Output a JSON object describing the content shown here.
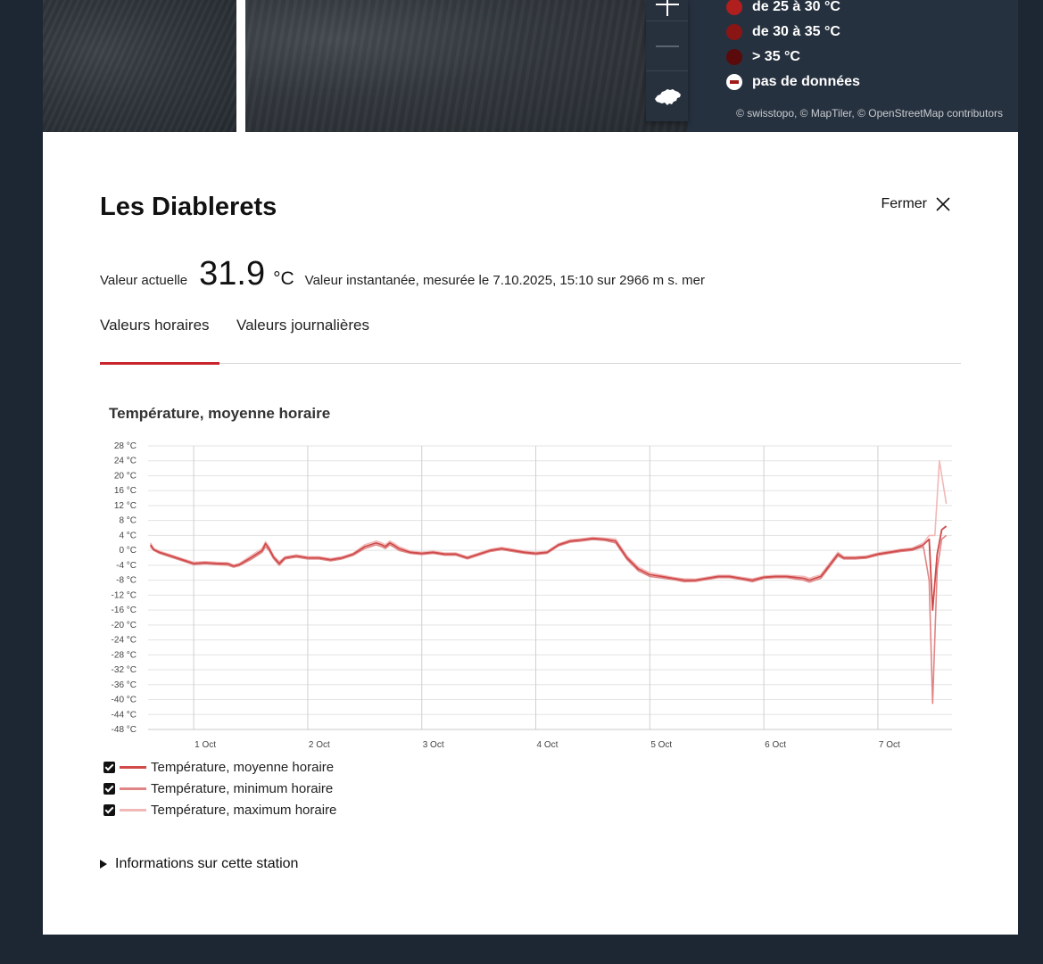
{
  "map": {
    "attribution": "© swisstopo, © MapTiler, © OpenStreetMap contributors",
    "controls": [
      {
        "name": "zoom-in-button",
        "icon": "plus-icon"
      },
      {
        "name": "zoom-out-button",
        "icon": "minus-icon"
      },
      {
        "name": "switzerland-view-button",
        "icon": "switzerland-icon"
      }
    ],
    "legend": [
      {
        "label": "de 25 à 30 °C",
        "color": "#b01e1e"
      },
      {
        "label": "de 30 à 35 °C",
        "color": "#8a1515"
      },
      {
        "label": "> 35 °C",
        "color": "#5a0a0a"
      },
      {
        "label": "pas de données",
        "color": "#ffffff"
      }
    ]
  },
  "panel": {
    "title": "Les Diablerets",
    "close_label": "Fermer",
    "current_label": "Valeur actuelle",
    "current_value": "31.9",
    "current_unit": "°C",
    "current_info": "Valeur instantanée, mesurée le 7.10.2025, 15:10 sur 2966 m s. mer",
    "tabs": [
      "Valeurs horaires",
      "Valeurs journalières"
    ],
    "active_tab": 0,
    "station_info": "Informations sur cette station"
  },
  "chart_data": {
    "type": "line",
    "title": "Température, moyenne horaire",
    "y_unit": "°C",
    "ylim": [
      -48,
      28
    ],
    "y_ticks": [
      28,
      24,
      20,
      16,
      12,
      8,
      4,
      0,
      -4,
      -8,
      -12,
      -16,
      -20,
      -24,
      -28,
      -32,
      -36,
      -40,
      -44,
      -48
    ],
    "y_tick_labels": [
      "28 °C",
      "24 °C",
      "20 °C",
      "16 °C",
      "12 °C",
      "8 °C",
      "4 °C",
      "0 °C",
      "-4 °C",
      "-8 °C",
      "-12 °C",
      "-16 °C",
      "-20 °C",
      "-24 °C",
      "-28 °C",
      "-32 °C",
      "-36 °C",
      "-40 °C",
      "-44 °C",
      "-48 °C"
    ],
    "x_ticks": [
      "1 Oct",
      "2 Oct",
      "3 Oct",
      "4 Oct",
      "5 Oct",
      "6 Oct",
      "7 Oct"
    ],
    "x_range_days": [
      -0.4,
      6.65
    ],
    "grid": true,
    "legend_position": "bottom",
    "series": [
      {
        "name": "Température, moyenne horaire",
        "color": "#d04a4a",
        "points": [
          [
            -0.38,
            1.5
          ],
          [
            -0.35,
            0.2
          ],
          [
            -0.3,
            -0.5
          ],
          [
            -0.2,
            -1.5
          ],
          [
            -0.1,
            -2.5
          ],
          [
            0,
            -3.5
          ],
          [
            0.1,
            -3.3
          ],
          [
            0.2,
            -3.5
          ],
          [
            0.3,
            -3.6
          ],
          [
            0.35,
            -4.2
          ],
          [
            0.4,
            -3.8
          ],
          [
            0.5,
            -2
          ],
          [
            0.6,
            0
          ],
          [
            0.63,
            1.8
          ],
          [
            0.66,
            0.5
          ],
          [
            0.7,
            -1.8
          ],
          [
            0.75,
            -3.5
          ],
          [
            0.8,
            -2
          ],
          [
            0.9,
            -1.5
          ],
          [
            1.0,
            -2
          ],
          [
            1.1,
            -2
          ],
          [
            1.2,
            -2.5
          ],
          [
            1.3,
            -2
          ],
          [
            1.4,
            -1
          ],
          [
            1.5,
            1
          ],
          [
            1.6,
            2
          ],
          [
            1.65,
            1.5
          ],
          [
            1.68,
            1
          ],
          [
            1.72,
            2
          ],
          [
            1.75,
            1.5
          ],
          [
            1.8,
            0.5
          ],
          [
            1.9,
            -0.5
          ],
          [
            2.0,
            -0.8
          ],
          [
            2.1,
            -0.5
          ],
          [
            2.2,
            -1
          ],
          [
            2.3,
            -1
          ],
          [
            2.4,
            -2
          ],
          [
            2.5,
            -1
          ],
          [
            2.6,
            0
          ],
          [
            2.7,
            0.5
          ],
          [
            2.8,
            0
          ],
          [
            2.9,
            -0.5
          ],
          [
            3.0,
            -0.8
          ],
          [
            3.1,
            -0.5
          ],
          [
            3.2,
            1.5
          ],
          [
            3.3,
            2.5
          ],
          [
            3.4,
            2.8
          ],
          [
            3.5,
            3.2
          ],
          [
            3.6,
            3
          ],
          [
            3.7,
            2.5
          ],
          [
            3.8,
            -2
          ],
          [
            3.9,
            -5
          ],
          [
            4.0,
            -6.5
          ],
          [
            4.1,
            -7
          ],
          [
            4.2,
            -7.5
          ],
          [
            4.3,
            -8
          ],
          [
            4.4,
            -8
          ],
          [
            4.5,
            -7.5
          ],
          [
            4.6,
            -7
          ],
          [
            4.7,
            -7
          ],
          [
            4.8,
            -7.5
          ],
          [
            4.9,
            -8
          ],
          [
            5.0,
            -7.2
          ],
          [
            5.1,
            -7
          ],
          [
            5.2,
            -7
          ],
          [
            5.35,
            -7.5
          ],
          [
            5.4,
            -8
          ],
          [
            5.5,
            -7
          ],
          [
            5.55,
            -5
          ],
          [
            5.6,
            -3
          ],
          [
            5.65,
            -1
          ],
          [
            5.7,
            -2
          ],
          [
            5.8,
            -2
          ],
          [
            5.9,
            -1.8
          ],
          [
            6.0,
            -1
          ],
          [
            6.1,
            -0.5
          ],
          [
            6.2,
            0
          ],
          [
            6.3,
            0.3
          ],
          [
            6.4,
            1.5
          ],
          [
            6.45,
            3
          ],
          [
            6.48,
            -16
          ],
          [
            6.52,
            -1
          ],
          [
            6.56,
            5.5
          ],
          [
            6.6,
            6.5
          ]
        ]
      },
      {
        "name": "Température, minimum horaire",
        "color": "#e08585",
        "points": [
          [
            -0.38,
            1
          ],
          [
            -0.35,
            0
          ],
          [
            -0.3,
            -0.8
          ],
          [
            -0.2,
            -1.8
          ],
          [
            -0.1,
            -2.8
          ],
          [
            0,
            -3.8
          ],
          [
            0.1,
            -3.6
          ],
          [
            0.2,
            -3.8
          ],
          [
            0.3,
            -4
          ],
          [
            0.35,
            -4.5
          ],
          [
            0.4,
            -4.1
          ],
          [
            0.5,
            -2.5
          ],
          [
            0.6,
            -0.5
          ],
          [
            0.63,
            1
          ],
          [
            0.66,
            0
          ],
          [
            0.7,
            -2.2
          ],
          [
            0.75,
            -4
          ],
          [
            0.8,
            -2.3
          ],
          [
            0.9,
            -1.8
          ],
          [
            1.0,
            -2.3
          ],
          [
            1.1,
            -2.3
          ],
          [
            1.2,
            -2.8
          ],
          [
            1.3,
            -2.3
          ],
          [
            1.4,
            -1.3
          ],
          [
            1.5,
            0.5
          ],
          [
            1.6,
            1.5
          ],
          [
            1.65,
            1
          ],
          [
            1.68,
            0.5
          ],
          [
            1.72,
            1.5
          ],
          [
            1.75,
            1
          ],
          [
            1.8,
            0
          ],
          [
            1.9,
            -0.8
          ],
          [
            2.0,
            -1.1
          ],
          [
            2.1,
            -0.8
          ],
          [
            2.2,
            -1.3
          ],
          [
            2.3,
            -1.3
          ],
          [
            2.4,
            -2.3
          ],
          [
            2.5,
            -1.3
          ],
          [
            2.6,
            -0.3
          ],
          [
            2.7,
            0.2
          ],
          [
            2.8,
            -0.3
          ],
          [
            2.9,
            -0.8
          ],
          [
            3.0,
            -1.1
          ],
          [
            3.1,
            -0.8
          ],
          [
            3.2,
            1.2
          ],
          [
            3.3,
            2.2
          ],
          [
            3.4,
            2.5
          ],
          [
            3.5,
            2.9
          ],
          [
            3.6,
            2.7
          ],
          [
            3.7,
            2
          ],
          [
            3.8,
            -2.5
          ],
          [
            3.9,
            -5.5
          ],
          [
            4.0,
            -7
          ],
          [
            4.1,
            -7.4
          ],
          [
            4.2,
            -7.8
          ],
          [
            4.3,
            -8.4
          ],
          [
            4.4,
            -8.3
          ],
          [
            4.5,
            -7.8
          ],
          [
            4.6,
            -7.3
          ],
          [
            4.7,
            -7.3
          ],
          [
            4.8,
            -7.8
          ],
          [
            4.9,
            -8.4
          ],
          [
            5.0,
            -7.5
          ],
          [
            5.1,
            -7.3
          ],
          [
            5.2,
            -7.3
          ],
          [
            5.35,
            -8
          ],
          [
            5.4,
            -8.5
          ],
          [
            5.5,
            -7.5
          ],
          [
            5.55,
            -5.5
          ],
          [
            5.6,
            -3.5
          ],
          [
            5.65,
            -1.5
          ],
          [
            5.7,
            -2.3
          ],
          [
            5.8,
            -2.3
          ],
          [
            5.9,
            -2.1
          ],
          [
            6.0,
            -1.3
          ],
          [
            6.1,
            -0.8
          ],
          [
            6.2,
            -0.3
          ],
          [
            6.3,
            0
          ],
          [
            6.4,
            1
          ],
          [
            6.45,
            -8
          ],
          [
            6.48,
            -41
          ],
          [
            6.52,
            -5
          ],
          [
            6.56,
            3
          ],
          [
            6.6,
            4
          ]
        ]
      },
      {
        "name": "Température, maximum horaire",
        "color": "#f1b8b8",
        "points": [
          [
            -0.38,
            2
          ],
          [
            -0.35,
            0.5
          ],
          [
            -0.3,
            -0.2
          ],
          [
            -0.2,
            -1.2
          ],
          [
            -0.1,
            -2.2
          ],
          [
            0,
            -3.2
          ],
          [
            0.1,
            -3
          ],
          [
            0.2,
            -3.2
          ],
          [
            0.3,
            -3.3
          ],
          [
            0.35,
            -3.9
          ],
          [
            0.4,
            -3.5
          ],
          [
            0.5,
            -1.5
          ],
          [
            0.6,
            0.5
          ],
          [
            0.63,
            2.3
          ],
          [
            0.66,
            1
          ],
          [
            0.7,
            -1.4
          ],
          [
            0.75,
            -3
          ],
          [
            0.8,
            -1.7
          ],
          [
            0.9,
            -1.2
          ],
          [
            1.0,
            -1.7
          ],
          [
            1.1,
            -1.7
          ],
          [
            1.2,
            -2.2
          ],
          [
            1.3,
            -1.7
          ],
          [
            1.4,
            -0.7
          ],
          [
            1.5,
            1.5
          ],
          [
            1.6,
            2.5
          ],
          [
            1.65,
            2
          ],
          [
            1.68,
            1.5
          ],
          [
            1.72,
            2.5
          ],
          [
            1.75,
            2
          ],
          [
            1.8,
            1
          ],
          [
            1.9,
            -0.2
          ],
          [
            2.0,
            -0.5
          ],
          [
            2.1,
            -0.2
          ],
          [
            2.2,
            -0.7
          ],
          [
            2.3,
            -0.7
          ],
          [
            2.4,
            -1.7
          ],
          [
            2.5,
            -0.7
          ],
          [
            2.6,
            0.3
          ],
          [
            2.7,
            0.8
          ],
          [
            2.8,
            0.3
          ],
          [
            2.9,
            -0.2
          ],
          [
            3.0,
            -0.5
          ],
          [
            3.1,
            -0.2
          ],
          [
            3.2,
            1.8
          ],
          [
            3.3,
            2.8
          ],
          [
            3.4,
            3.1
          ],
          [
            3.5,
            3.5
          ],
          [
            3.6,
            3.3
          ],
          [
            3.7,
            3
          ],
          [
            3.8,
            -1.5
          ],
          [
            3.9,
            -4.5
          ],
          [
            4.0,
            -6
          ],
          [
            4.1,
            -6.6
          ],
          [
            4.2,
            -7.2
          ],
          [
            4.3,
            -7.6
          ],
          [
            4.4,
            -7.7
          ],
          [
            4.5,
            -7.2
          ],
          [
            4.6,
            -6.7
          ],
          [
            4.7,
            -6.7
          ],
          [
            4.8,
            -7.2
          ],
          [
            4.9,
            -7.6
          ],
          [
            5.0,
            -6.9
          ],
          [
            5.1,
            -6.7
          ],
          [
            5.2,
            -6.7
          ],
          [
            5.35,
            -7
          ],
          [
            5.4,
            -7.5
          ],
          [
            5.5,
            -6.5
          ],
          [
            5.55,
            -4.5
          ],
          [
            5.6,
            -2.5
          ],
          [
            5.65,
            -0.5
          ],
          [
            5.7,
            -1.7
          ],
          [
            5.8,
            -1.7
          ],
          [
            5.9,
            -1.5
          ],
          [
            6.0,
            -0.7
          ],
          [
            6.1,
            -0.2
          ],
          [
            6.2,
            0.3
          ],
          [
            6.3,
            0.6
          ],
          [
            6.4,
            2
          ],
          [
            6.45,
            4
          ],
          [
            6.5,
            4
          ],
          [
            6.54,
            24
          ],
          [
            6.6,
            12.5
          ]
        ]
      }
    ]
  }
}
